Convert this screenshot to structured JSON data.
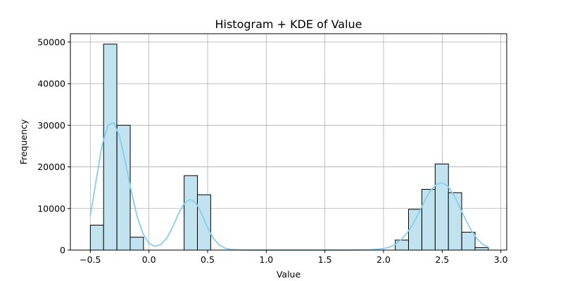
{
  "chart_data": {
    "type": "bar",
    "title": "Histogram + KDE of Value",
    "xlabel": "Value",
    "ylabel": "Frequency",
    "xlim": [
      -0.67,
      3.05
    ],
    "ylim": [
      0,
      52000
    ],
    "grid": true,
    "xticks": [
      -0.5,
      0.0,
      0.5,
      1.0,
      1.5,
      2.0,
      2.5,
      3.0
    ],
    "xtick_labels": [
      "−0.5",
      "0.0",
      "0.5",
      "1.0",
      "1.5",
      "2.0",
      "2.5",
      "3.0"
    ],
    "yticks": [
      0,
      10000,
      20000,
      30000,
      40000,
      50000
    ],
    "ytick_labels": [
      "0",
      "10000",
      "20000",
      "30000",
      "40000",
      "50000"
    ],
    "bin_width": 0.1133,
    "bins": [
      {
        "x0": -0.5,
        "count": 6000
      },
      {
        "x0": -0.387,
        "count": 49500
      },
      {
        "x0": -0.273,
        "count": 30000
      },
      {
        "x0": -0.16,
        "count": 3100
      },
      {
        "x0": 0.3,
        "count": 17900
      },
      {
        "x0": 0.413,
        "count": 13300
      },
      {
        "x0": 2.1,
        "count": 2400
      },
      {
        "x0": 2.213,
        "count": 9800
      },
      {
        "x0": 2.327,
        "count": 14600
      },
      {
        "x0": 2.44,
        "count": 20700
      },
      {
        "x0": 2.553,
        "count": 13800
      },
      {
        "x0": 2.667,
        "count": 4300
      },
      {
        "x0": 2.78,
        "count": 600
      }
    ],
    "kde": {
      "x": [
        -0.5,
        -0.45,
        -0.4,
        -0.35,
        -0.3,
        -0.25,
        -0.2,
        -0.15,
        -0.1,
        -0.05,
        0.0,
        0.05,
        0.1,
        0.15,
        0.2,
        0.25,
        0.3,
        0.35,
        0.4,
        0.45,
        0.5,
        0.55,
        0.6,
        0.65,
        0.7,
        0.8,
        0.9,
        1.0,
        1.2,
        1.5,
        1.8,
        1.9,
        2.0,
        2.05,
        2.1,
        2.15,
        2.2,
        2.25,
        2.3,
        2.35,
        2.4,
        2.45,
        2.5,
        2.55,
        2.6,
        2.65,
        2.7,
        2.75,
        2.8,
        2.85,
        2.9
      ],
      "y": [
        8200,
        16800,
        25200,
        30000,
        30600,
        27300,
        21000,
        14000,
        8000,
        3900,
        1600,
        900,
        1300,
        2800,
        5400,
        8600,
        11200,
        12200,
        11400,
        8700,
        5400,
        2800,
        1200,
        450,
        150,
        30,
        10,
        10,
        10,
        10,
        30,
        100,
        350,
        700,
        1350,
        2500,
        4100,
        6200,
        8900,
        11800,
        14300,
        15800,
        16200,
        15300,
        13200,
        10300,
        7300,
        4600,
        2600,
        1300,
        600
      ]
    },
    "colors": {
      "bar_fill": "#c1e3f0",
      "bar_edge": "#000000",
      "kde_line": "#87ceeb",
      "grid": "#b0b0b0"
    }
  }
}
